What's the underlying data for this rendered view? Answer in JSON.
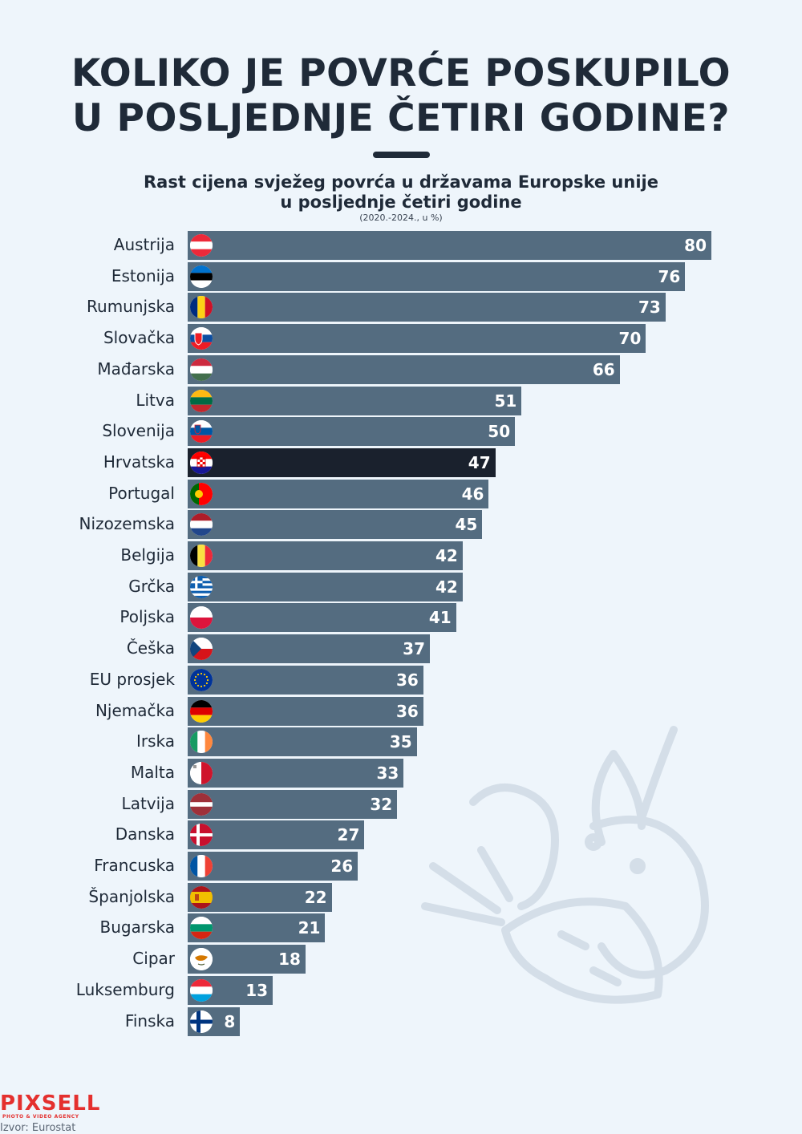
{
  "title": {
    "line1": "KOLIKO JE POVRĆE POSKUPILO",
    "line2": "U POSLJEDNJE ČETIRI GODINE?"
  },
  "subtitle": {
    "line1": "Rast cijena svježeg povrća u državama Europske unije",
    "line2": "u posljednje četiri godine"
  },
  "unit_note": "(2020.-2024., u %)",
  "logo": {
    "name": "PIXSELL",
    "tagline": "PHOTO & VIDEO AGENCY"
  },
  "source": "Izvor: Eurostat",
  "colors": {
    "background": "#eef5fb",
    "bar": "#546c80",
    "highlight_bar": "#1a212d",
    "text": "#1f2a38",
    "logo": "#e4302e"
  },
  "chart_data": {
    "type": "bar",
    "orientation": "horizontal",
    "categories": [
      "Austrija",
      "Estonija",
      "Rumunjska",
      "Slovačka",
      "Mađarska",
      "Litva",
      "Slovenija",
      "Hrvatska",
      "Portugal",
      "Nizozemska",
      "Belgija",
      "Grčka",
      "Poljska",
      "Češka",
      "EU prosjek",
      "Njemačka",
      "Irska",
      "Malta",
      "Latvija",
      "Danska",
      "Francuska",
      "Španjolska",
      "Bugarska",
      "Cipar",
      "Luksemburg",
      "Finska"
    ],
    "values": [
      80,
      76,
      73,
      70,
      66,
      51,
      50,
      47,
      46,
      45,
      42,
      42,
      41,
      37,
      36,
      36,
      35,
      33,
      32,
      27,
      26,
      22,
      21,
      18,
      13,
      8
    ],
    "flags": [
      "at-flag-icon",
      "ee-flag-icon",
      "ro-flag-icon",
      "sk-flag-icon",
      "hu-flag-icon",
      "lt-flag-icon",
      "si-flag-icon",
      "hr-flag-icon",
      "pt-flag-icon",
      "nl-flag-icon",
      "be-flag-icon",
      "gr-flag-icon",
      "pl-flag-icon",
      "cz-flag-icon",
      "eu-flag-icon",
      "de-flag-icon",
      "ie-flag-icon",
      "mt-flag-icon",
      "lv-flag-icon",
      "dk-flag-icon",
      "fr-flag-icon",
      "es-flag-icon",
      "bg-flag-icon",
      "cy-flag-icon",
      "lu-flag-icon",
      "fi-flag-icon"
    ],
    "highlight": "Hrvatska",
    "xlim": [
      0,
      80
    ],
    "grid": false,
    "legend": "none",
    "data_labels": "inside-end"
  }
}
